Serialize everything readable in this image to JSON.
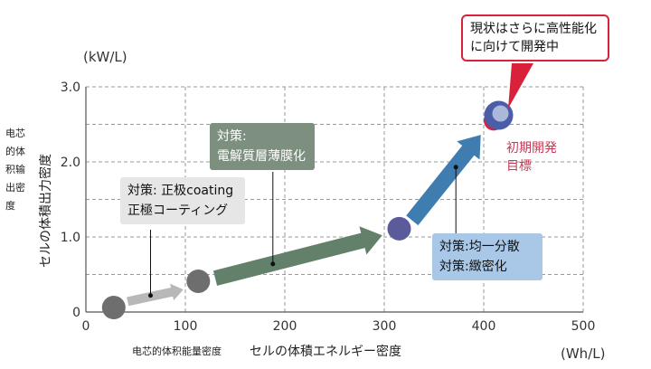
{
  "chart_data": {
    "type": "scatter",
    "x_unit": "(Wh/L)",
    "y_unit": "(kW/L)",
    "xlabel_small": "电芯的体积能量密度",
    "xlabel": "セルの体積エネルギー密度",
    "ylabel_small_lines": [
      "电芯",
      "的体",
      "积输",
      "出密",
      "度"
    ],
    "ylabel": "セルの体積出力密度",
    "xlim": [
      0,
      500
    ],
    "ylim": [
      0,
      3.0
    ],
    "x_ticks": [
      "0",
      "100",
      "200",
      "300",
      "400",
      "500"
    ],
    "y_ticks": [
      "0",
      "1.0",
      "2.0",
      "3.0"
    ],
    "grid": true,
    "points": [
      {
        "x": 28,
        "y": 0.06,
        "color": "#6e6e6e"
      },
      {
        "x": 113,
        "y": 0.41,
        "color": "#6e6e6e"
      },
      {
        "x": 315,
        "y": 1.11,
        "color": "#5b5a9a"
      },
      {
        "x": 410,
        "y": 2.55,
        "color": "#d9213a"
      },
      {
        "x": 415,
        "y": 2.62,
        "color": "#4c5da8"
      }
    ],
    "arrows": [
      {
        "from": [
          42,
          0.14
        ],
        "to": [
          98,
          0.3
        ],
        "color": "#b8b8b8",
        "width": 10
      },
      {
        "from": [
          130,
          0.45
        ],
        "to": [
          298,
          1.02
        ],
        "color": "#62806a",
        "width": 17
      },
      {
        "from": [
          328,
          1.22
        ],
        "to": [
          397,
          2.36
        ],
        "color": "#3f7db0",
        "width": 17
      }
    ],
    "annotations": [
      {
        "lines": [
          "対策: 正极coating",
          "正極コーティング"
        ],
        "bg": "#e6e6e6",
        "color": "#111",
        "leader_x": 65,
        "leader_y": 0.22
      },
      {
        "lines": [
          "対策:",
          "電解質層薄膜化"
        ],
        "bg": "#7d8f7e",
        "color": "#ffffff",
        "leader_x": 188,
        "leader_y": 0.64
      },
      {
        "lines": [
          "対策:均一分散",
          "対策:緻密化"
        ],
        "bg": "#a9c7e6",
        "color": "#111",
        "leader_x": 372,
        "leader_y": 1.93
      }
    ],
    "callout_lines": [
      "現状はさらに高性能化",
      "に向けて開発中"
    ],
    "target_lines": [
      "初期開発",
      "目標"
    ]
  },
  "colors": {
    "grid": "#9a9a9a",
    "axis": "#555555",
    "callout_border": "#d9213a",
    "target_text": "#c23a55"
  }
}
